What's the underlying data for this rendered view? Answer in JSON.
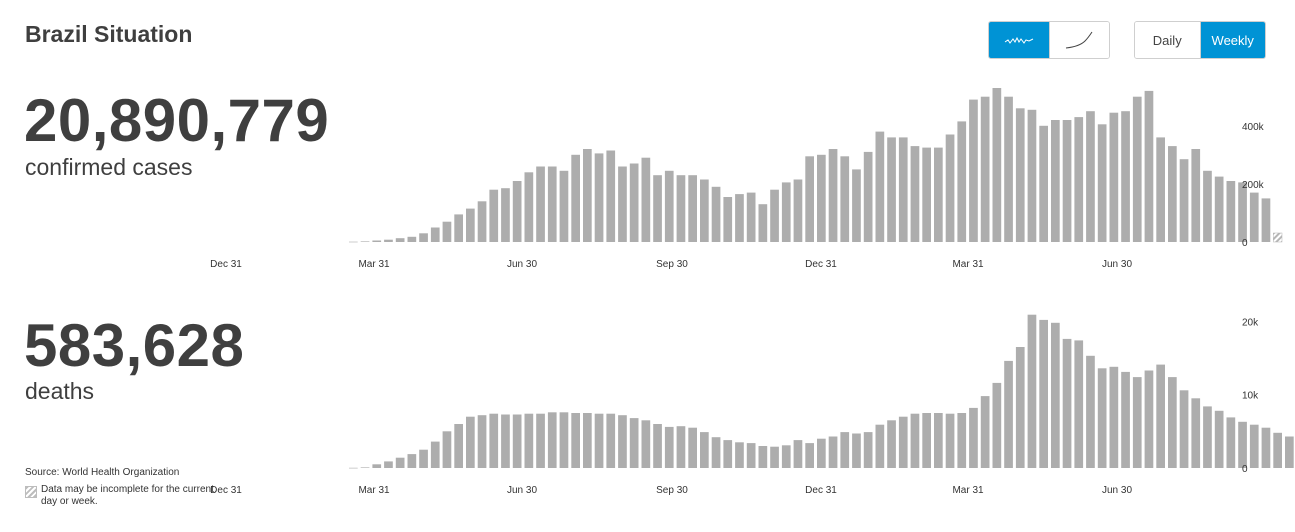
{
  "page": {
    "title": "Brazil Situation"
  },
  "controls": {
    "scale_buttons": [
      {
        "name": "linear-scale",
        "icon": "wave-line-icon",
        "active": true
      },
      {
        "name": "cumulative-scale",
        "icon": "rising-curve-icon",
        "active": false
      }
    ],
    "period_buttons": [
      {
        "label": "Daily",
        "active": false
      },
      {
        "label": "Weekly",
        "active": true
      }
    ],
    "accent_color": "#0093d5"
  },
  "cases": {
    "value": "20,890,779",
    "label": "confirmed cases"
  },
  "deaths": {
    "value": "583,628",
    "label": "deaths"
  },
  "footer": {
    "source_label": "Source:",
    "source_value": "World Health Organization",
    "note": "Data may be incomplete for the current day or week."
  },
  "chart_data": [
    {
      "type": "bar",
      "series": "confirmed cases (weekly)",
      "bar_color": "#adadad",
      "x_ticks": [
        "Dec 31",
        "Mar 31",
        "Jun 30",
        "Sep 30",
        "Dec 31",
        "Mar 31",
        "Jun 30"
      ],
      "y_ticks": [
        "0",
        "200k",
        "400k"
      ],
      "ylim": [
        0,
        530000
      ],
      "values": [
        1000,
        2000,
        5000,
        8000,
        13000,
        18000,
        30000,
        50000,
        70000,
        95000,
        115000,
        140000,
        180000,
        185000,
        210000,
        240000,
        260000,
        260000,
        245000,
        300000,
        320000,
        305000,
        315000,
        260000,
        270000,
        290000,
        230000,
        245000,
        230000,
        230000,
        215000,
        190000,
        155000,
        165000,
        170000,
        130000,
        180000,
        205000,
        215000,
        295000,
        300000,
        320000,
        295000,
        250000,
        310000,
        380000,
        360000,
        360000,
        330000,
        325000,
        325000,
        370000,
        415000,
        490000,
        500000,
        530000,
        500000,
        460000,
        455000,
        400000,
        420000,
        420000,
        430000,
        450000,
        405000,
        445000,
        450000,
        500000,
        520000,
        360000,
        330000,
        285000,
        320000,
        245000,
        225000,
        210000,
        205000,
        170000,
        150000
      ],
      "incomplete_last": true
    },
    {
      "type": "bar",
      "series": "deaths (weekly)",
      "bar_color": "#adadad",
      "x_ticks": [
        "Dec 31",
        "Mar 31",
        "Jun 30",
        "Sep 30",
        "Dec 31",
        "Mar 31",
        "Jun 30"
      ],
      "y_ticks": [
        "0",
        "10k",
        "20k"
      ],
      "ylim": [
        0,
        21000
      ],
      "values": [
        30,
        80,
        500,
        900,
        1400,
        1900,
        2500,
        3600,
        5000,
        6000,
        7000,
        7200,
        7400,
        7300,
        7300,
        7400,
        7400,
        7600,
        7600,
        7500,
        7500,
        7400,
        7400,
        7200,
        6800,
        6500,
        6000,
        5600,
        5700,
        5500,
        4900,
        4200,
        3800,
        3500,
        3400,
        3000,
        2900,
        3100,
        3800,
        3400,
        4000,
        4300,
        4900,
        4700,
        4900,
        5900,
        6500,
        7000,
        7400,
        7500,
        7500,
        7400,
        7500,
        8200,
        9800,
        11600,
        14600,
        16500,
        20900,
        20200,
        19800,
        17600,
        17400,
        15300,
        13600,
        13800,
        13100,
        12400,
        13300,
        14100,
        12400,
        10600,
        9500,
        8400,
        7800,
        6900,
        6300,
        5900,
        5500,
        4800,
        4300
      ],
      "incomplete_last": true
    }
  ]
}
